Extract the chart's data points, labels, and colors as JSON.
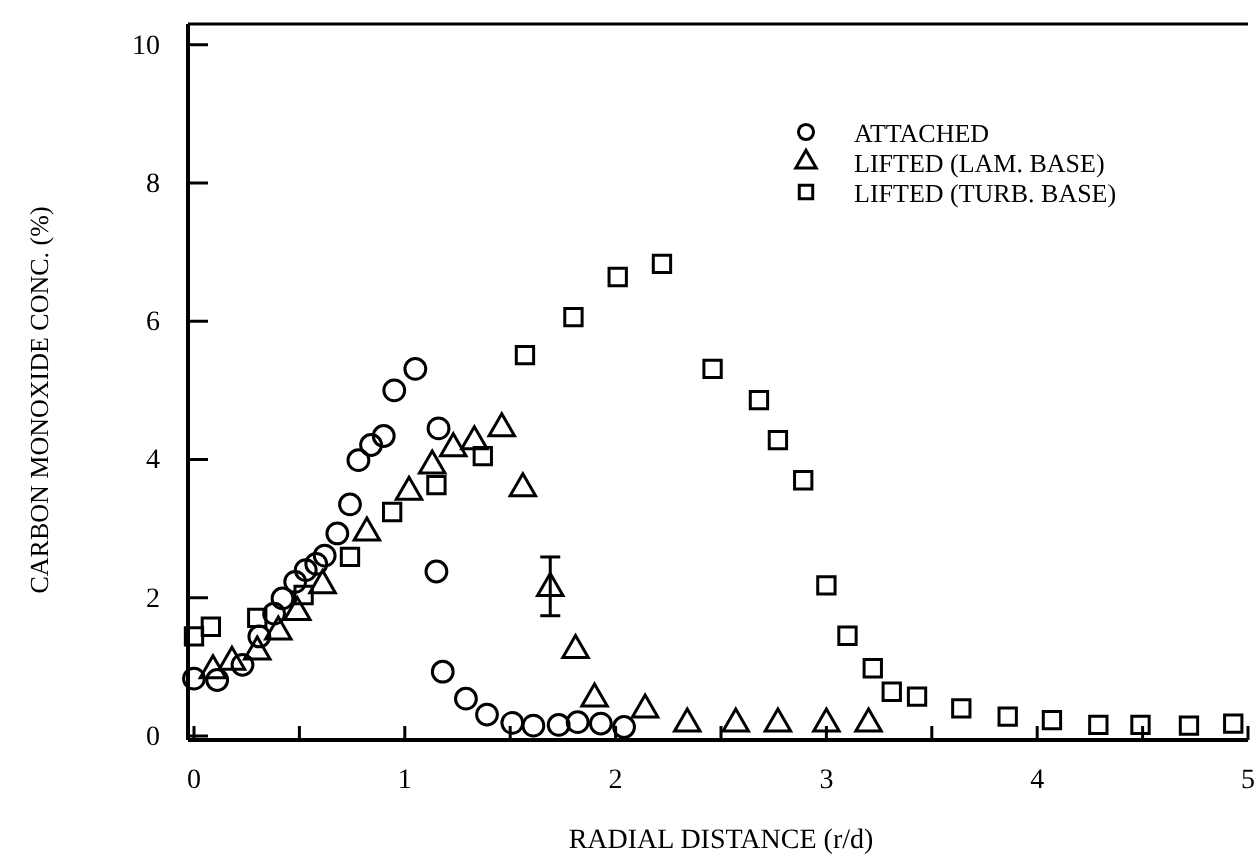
{
  "chart_data": {
    "type": "scatter",
    "xlabel": "RADIAL DISTANCE (r/d)",
    "ylabel": "CARBON MONOXIDE CONC. (%)",
    "xlim": [
      0,
      5
    ],
    "ylim": [
      0,
      10.3
    ],
    "xticks": [
      0,
      {
        "value": 0.5,
        "label": null
      },
      1,
      {
        "value": 1.5,
        "label": null
      },
      2,
      {
        "value": 2.5,
        "label": null
      },
      3,
      {
        "value": 3.5,
        "label": null
      },
      4,
      {
        "value": 4.5,
        "label": null
      },
      5
    ],
    "yticks": [
      0,
      2,
      4,
      6,
      8,
      10
    ],
    "grid": false,
    "legend": "top right",
    "series": [
      {
        "name": "ATTACHED",
        "color": "#000000",
        "marker": "circle",
        "x": [
          0.0,
          0.11,
          0.23,
          0.31,
          0.38,
          0.42,
          0.48,
          0.53,
          0.58,
          0.62,
          0.68,
          0.74,
          0.78,
          0.84,
          0.9,
          0.95,
          1.05,
          1.16,
          1.15,
          1.18,
          1.29,
          1.39,
          1.51,
          1.61,
          1.73,
          1.82,
          1.93,
          2.04
        ],
        "values": [
          0.83,
          0.81,
          1.03,
          1.44,
          1.77,
          1.99,
          2.23,
          2.4,
          2.49,
          2.61,
          2.93,
          3.35,
          3.99,
          4.21,
          4.34,
          5.0,
          5.31,
          4.45,
          2.38,
          0.93,
          0.54,
          0.31,
          0.19,
          0.15,
          0.16,
          0.2,
          0.18,
          0.13
        ]
      },
      {
        "name": "LIFTED (LAM. BASE)",
        "color": "#000000",
        "marker": "triangle",
        "x": [
          0.09,
          0.18,
          0.3,
          0.4,
          0.49,
          0.61,
          0.82,
          1.02,
          1.13,
          1.23,
          1.33,
          1.46,
          1.56,
          1.69,
          1.81,
          1.9,
          2.14,
          2.34,
          2.57,
          2.77,
          3.0,
          3.2
        ],
        "values": [
          0.95,
          1.07,
          1.22,
          1.51,
          1.79,
          2.18,
          2.94,
          3.53,
          3.91,
          4.16,
          4.26,
          4.45,
          3.58,
          2.14,
          1.24,
          0.54,
          0.38,
          0.18,
          0.18,
          0.18,
          0.18,
          0.18
        ],
        "errors": [
          null,
          null,
          null,
          null,
          null,
          null,
          null,
          null,
          null,
          null,
          null,
          null,
          null,
          [
            1.74,
            2.59
          ],
          null,
          null,
          null,
          null,
          null,
          null,
          null,
          null
        ]
      },
      {
        "name": "LIFTED (TURB. BASE)",
        "color": "#000000",
        "marker": "square",
        "x": [
          0.0,
          0.08,
          0.3,
          0.52,
          0.74,
          0.94,
          1.15,
          1.37,
          1.57,
          1.8,
          2.01,
          2.22,
          2.46,
          2.68,
          2.77,
          2.89,
          3.0,
          3.1,
          3.22,
          3.31,
          3.43,
          3.64,
          3.86,
          4.07,
          4.29,
          4.49,
          4.72,
          4.93
        ],
        "values": [
          1.44,
          1.58,
          1.71,
          2.04,
          2.59,
          3.24,
          3.63,
          4.05,
          5.51,
          6.06,
          6.64,
          6.83,
          5.31,
          4.86,
          4.28,
          3.7,
          2.18,
          1.45,
          0.98,
          0.64,
          0.57,
          0.4,
          0.28,
          0.23,
          0.16,
          0.16,
          0.15,
          0.18
        ]
      }
    ]
  }
}
